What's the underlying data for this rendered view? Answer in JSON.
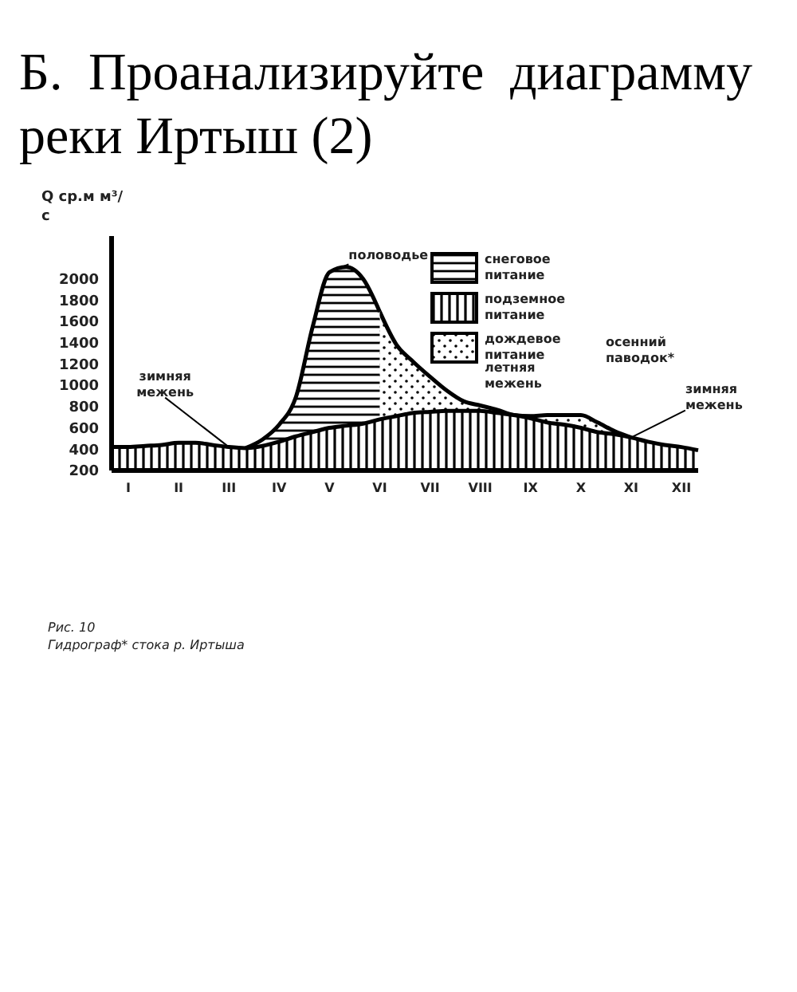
{
  "chart_data": {
    "type": "area",
    "title": "Б. Проанализируйте диаграмму реки Иртыш (2)",
    "ylabel": "Q ср.м м³/с",
    "categories": [
      null,
      "I",
      null,
      null,
      "II",
      null,
      null,
      "III",
      null,
      null,
      "IV",
      null,
      null,
      "V",
      null,
      null,
      "VI",
      null,
      null,
      "VII",
      null,
      null,
      "VIII",
      null,
      null,
      "IX",
      null,
      null,
      "X",
      null,
      null,
      "XI",
      null,
      null,
      "XII",
      null
    ],
    "series": [
      {
        "name": "снеговое питание",
        "color": "#000000",
        "values": [
          null,
          null,
          null,
          null,
          null,
          null,
          null,
          null,
          410,
          490,
          630,
          890,
          1550,
          2060,
          2110,
          2000,
          1690,
          null,
          null,
          null,
          null,
          null,
          null,
          null,
          null,
          null,
          null,
          null,
          null,
          null,
          null,
          null,
          null,
          null,
          null,
          null
        ]
      },
      {
        "name": "подземное питание",
        "color": "#000000",
        "values": [
          420,
          420,
          430,
          440,
          460,
          460,
          440,
          420,
          410,
          430,
          470,
          520,
          560,
          600,
          620,
          640,
          680,
          710,
          740,
          750,
          760,
          760,
          760,
          740,
          720,
          690,
          650,
          630,
          600,
          560,
          540,
          510,
          470,
          440,
          420,
          390
        ]
      },
      {
        "name": "дождевое питание",
        "color": "#000000",
        "values": [
          null,
          null,
          null,
          null,
          null,
          null,
          null,
          null,
          null,
          null,
          null,
          null,
          null,
          null,
          null,
          null,
          1690,
          1380,
          1220,
          1080,
          950,
          850,
          810,
          770,
          720,
          710,
          720,
          720,
          720,
          650,
          570,
          510,
          null,
          null,
          null,
          null
        ]
      }
    ],
    "ylim": [
      200,
      2400
    ],
    "yticks": [
      200,
      400,
      600,
      800,
      1000,
      1200,
      1400,
      1600,
      1800,
      2000
    ],
    "grid": false,
    "legend": "top right",
    "marker": "none",
    "annotations": [
      {
        "text": "половодье",
        "x": "V",
        "y": 2060
      },
      {
        "text": "зимняя межень",
        "x": "III",
        "y": 420
      },
      {
        "text": "зимняя межень",
        "x": "XI",
        "y": 510
      },
      "летняя межень",
      "осенний паводок*",
      "Рис. 10",
      "Гидрограф* стока р. Иртыша"
    ]
  }
}
